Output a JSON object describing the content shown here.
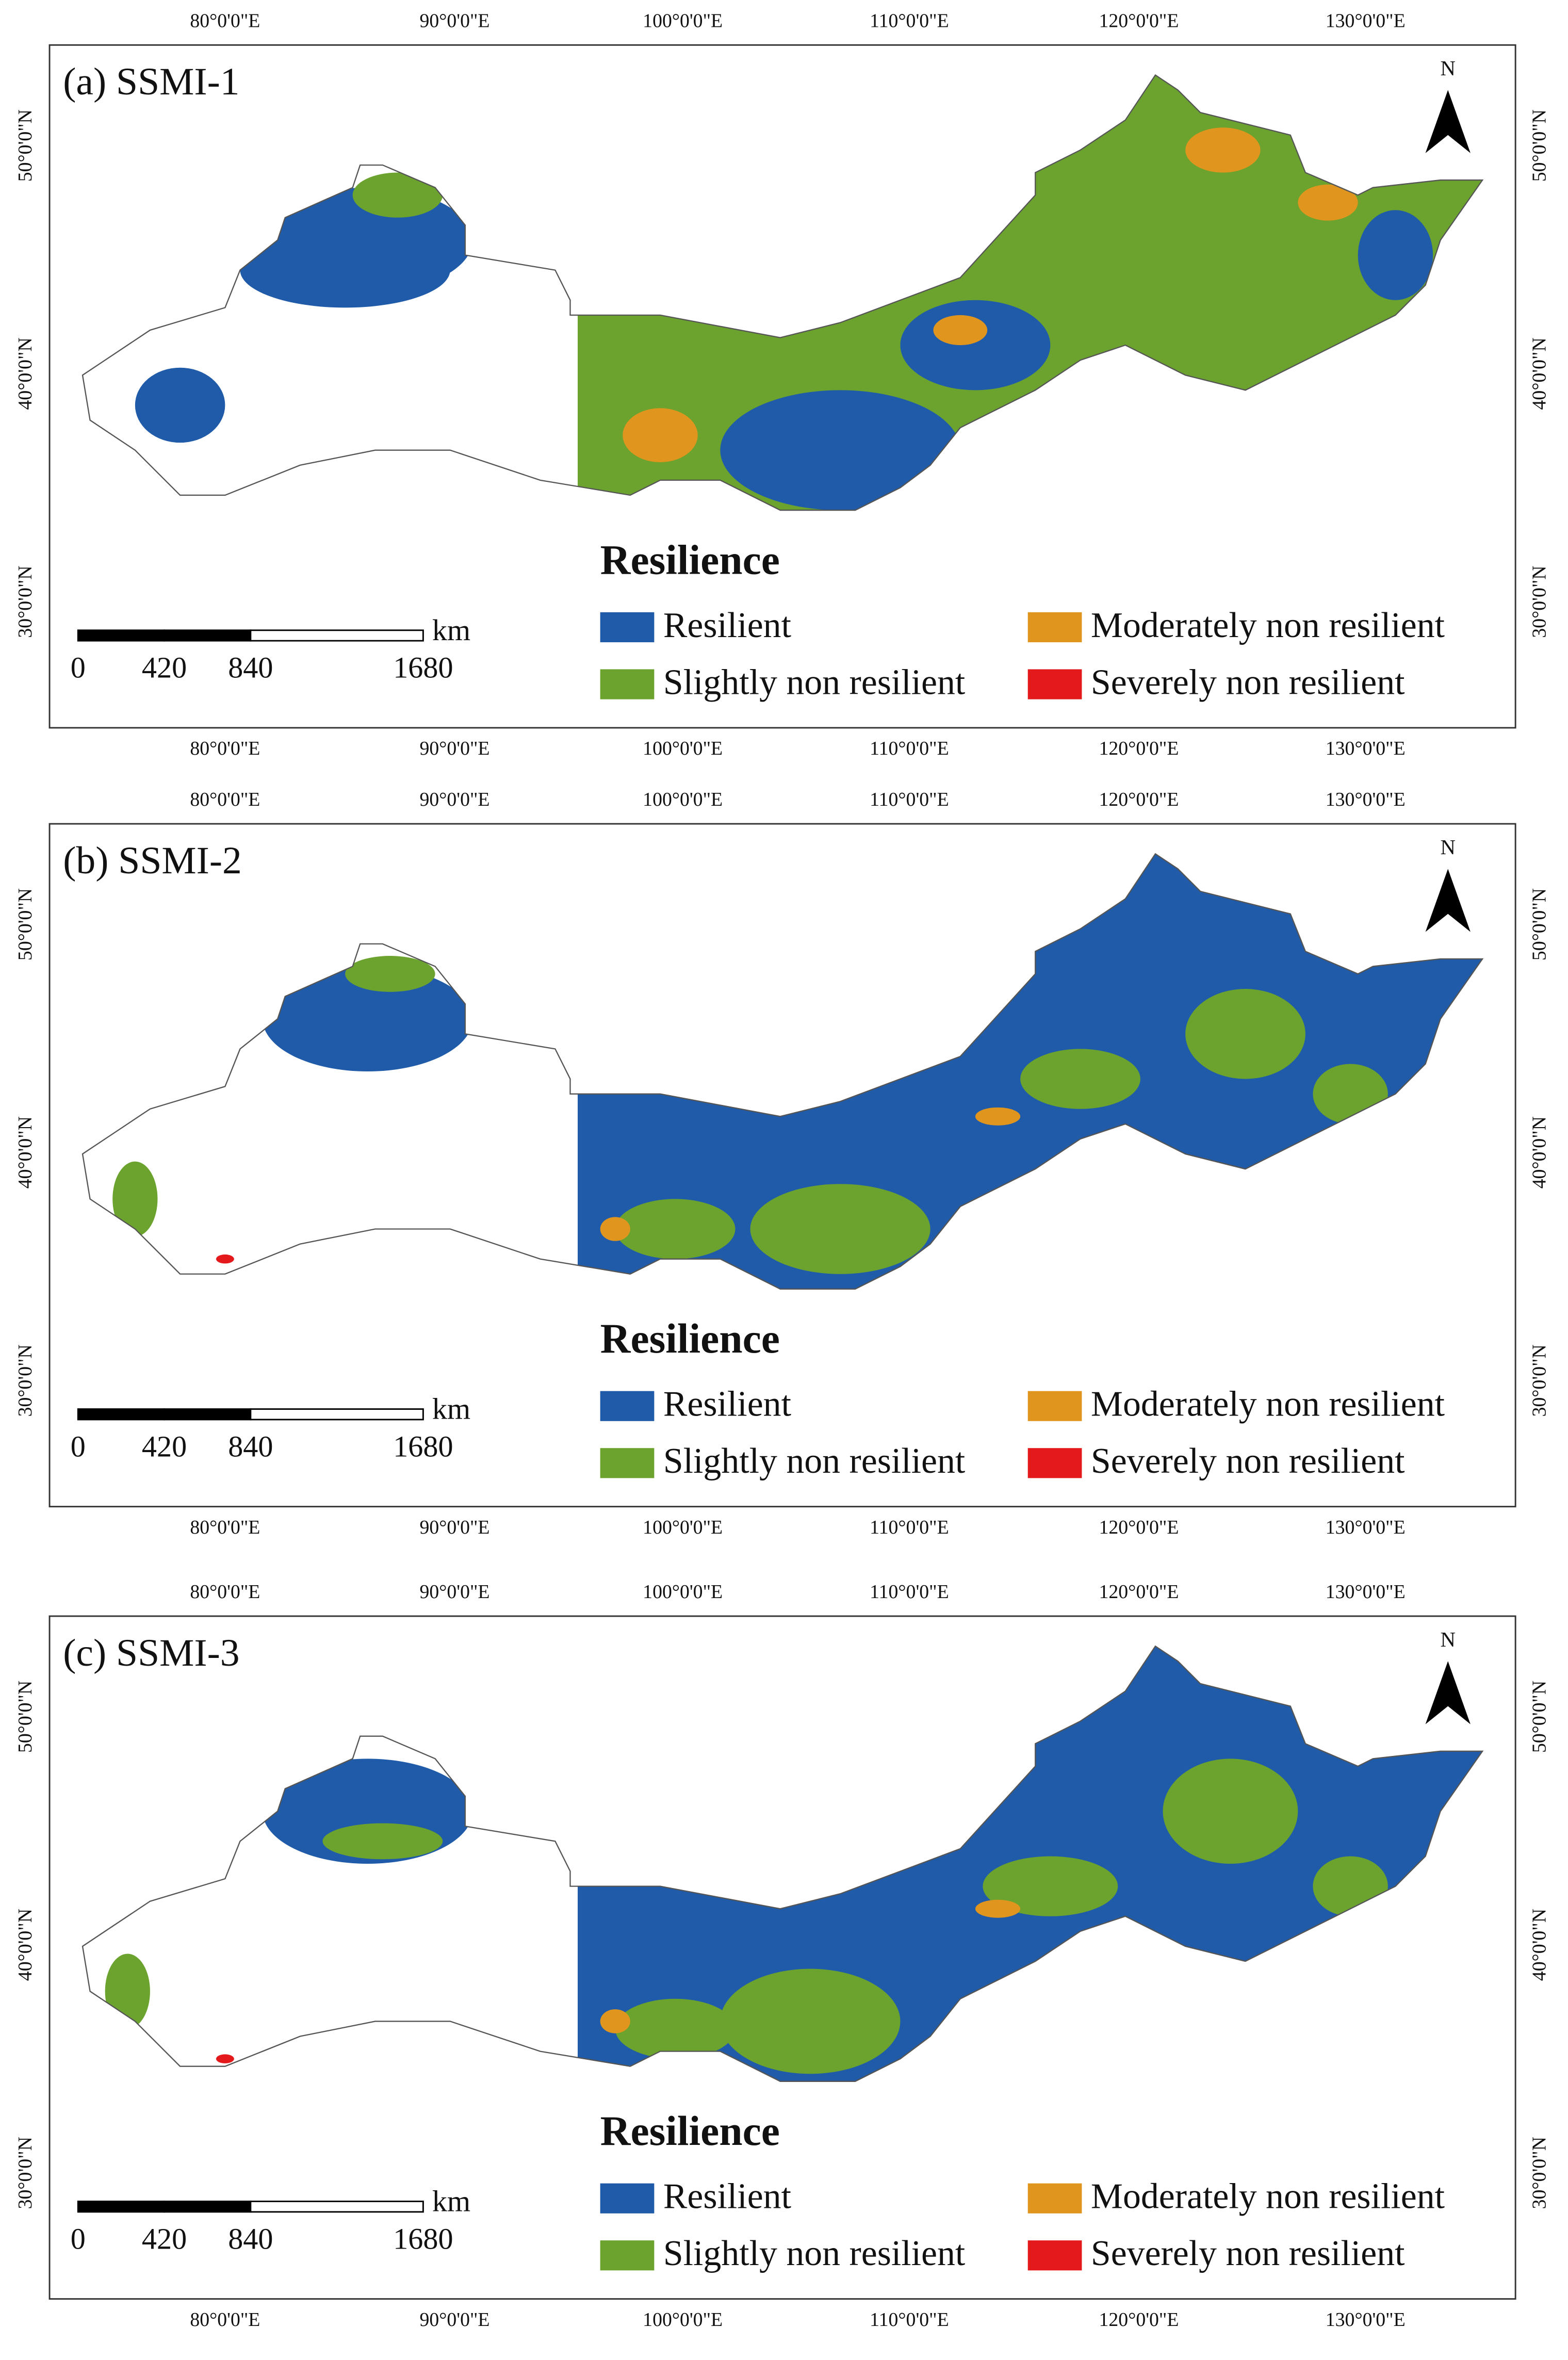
{
  "panels": [
    {
      "label": "(a) SSMI-1"
    },
    {
      "label": "(b) SSMI-2"
    },
    {
      "label": "(c) SSMI-3"
    }
  ],
  "legend": {
    "title": "Resilience",
    "items": [
      {
        "label": "Resilient",
        "color": "#1f5ba8"
      },
      {
        "label": "Slightly non resilient",
        "color": "#6ba32e"
      },
      {
        "label": "Moderately non resilient",
        "color": "#e0961e"
      },
      {
        "label": "Severely non resilient",
        "color": "#e3191b"
      }
    ]
  },
  "scale_bar": {
    "unit": "km",
    "ticks": [
      0,
      420,
      840,
      1680
    ]
  },
  "longitude_labels": [
    "80°0'0\"E",
    "90°0'0\"E",
    "100°0'0\"E",
    "110°0'0\"E",
    "120°0'0\"E",
    "130°0'0\"E"
  ],
  "latitude_labels": [
    "50°0'0\"N",
    "40°0'0\"N",
    "30°0'0\"N"
  ],
  "north": "N"
}
